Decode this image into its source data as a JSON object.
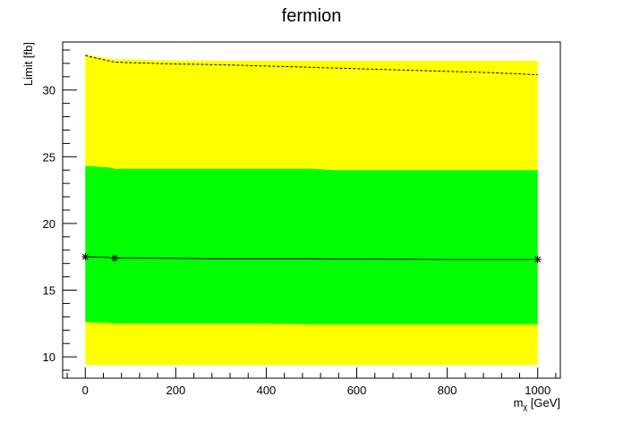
{
  "chart_data": {
    "type": "line",
    "title": "fermion",
    "ylabel": "Limit [fb]",
    "xlabel_main": "m",
    "xlabel_sub": "χ",
    "xlabel_unit": " [GeV]",
    "xlim": [
      -50,
      1050
    ],
    "ylim": [
      8.4,
      33.6
    ],
    "x_ticks": [
      0,
      200,
      400,
      600,
      800,
      1000
    ],
    "x_tick_labels": [
      "0",
      "200",
      "400",
      "600",
      "800",
      "1000"
    ],
    "y_ticks": [
      10,
      15,
      20,
      25,
      30
    ],
    "y_tick_labels": [
      "10",
      "15",
      "20",
      "25",
      "30"
    ],
    "grid": false,
    "colors": {
      "band_2sigma": "#ffff00",
      "band_1sigma": "#00ff00",
      "line": "#000000"
    },
    "x": [
      0,
      10,
      50,
      65,
      100,
      200,
      300,
      400,
      500,
      550,
      600,
      700,
      800,
      900,
      1000
    ],
    "series": [
      {
        "role": "band_2sigma_upper",
        "values": [
          32.7,
          32.6,
          32.4,
          32.3,
          32.3,
          32.2,
          32.2,
          32.2,
          32.2,
          32.2,
          32.2,
          32.2,
          32.2,
          32.2,
          32.2
        ]
      },
      {
        "role": "band_1sigma_upper",
        "values": [
          24.3,
          24.3,
          24.2,
          24.1,
          24.1,
          24.1,
          24.1,
          24.1,
          24.1,
          24.0,
          24.0,
          24.0,
          24.0,
          24.0,
          24.0
        ]
      },
      {
        "role": "expected",
        "values": [
          17.5,
          17.5,
          17.45,
          17.4,
          17.4,
          17.38,
          17.35,
          17.35,
          17.35,
          17.33,
          17.33,
          17.32,
          17.3,
          17.3,
          17.3
        ]
      },
      {
        "role": "band_1sigma_lower",
        "values": [
          12.6,
          12.6,
          12.55,
          12.5,
          12.5,
          12.5,
          12.5,
          12.5,
          12.45,
          12.45,
          12.45,
          12.45,
          12.45,
          12.45,
          12.45
        ]
      },
      {
        "role": "band_2sigma_lower",
        "values": [
          9.4,
          9.4,
          9.4,
          9.4,
          9.4,
          9.4,
          9.4,
          9.4,
          9.4,
          9.4,
          9.4,
          9.4,
          9.4,
          9.4,
          9.4
        ]
      },
      {
        "role": "observed",
        "values": [
          32.6,
          32.5,
          32.2,
          32.1,
          32.05,
          31.95,
          31.9,
          31.8,
          31.7,
          31.65,
          31.6,
          31.5,
          31.4,
          31.3,
          31.15
        ]
      }
    ],
    "markers": {
      "x": [
        0,
        65,
        1000
      ],
      "y": [
        17.5,
        17.4,
        17.3
      ]
    }
  }
}
